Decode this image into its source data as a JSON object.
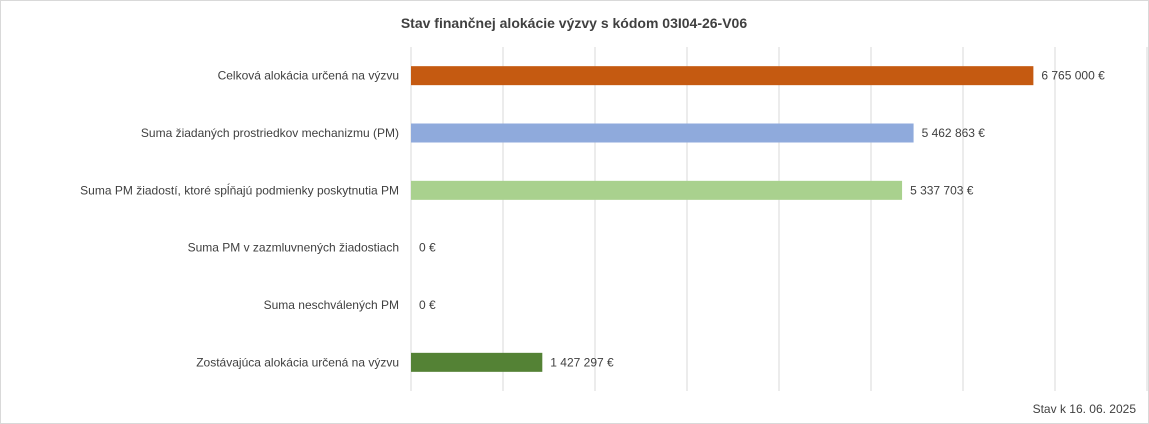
{
  "chart_data": {
    "type": "bar",
    "orientation": "horizontal",
    "title": "Stav finančnej alokácie výzvy s kódom 03I04-26-V06",
    "categories": [
      "Celková alokácia určená na výzvu",
      "Suma žiadaných prostriedkov mechanizmu (PM)",
      "Suma PM žiadostí, ktoré spĺňajú podmienky poskytnutia PM",
      "Suma PM v zazmluvnených žiadostiach",
      "Suma neschválených PM",
      "Zostávajúca alokácia určená na výzvu"
    ],
    "values": [
      6765000,
      5462863,
      5337703,
      0,
      0,
      1427297
    ],
    "data_labels": [
      "6 765 000 €",
      "5 462 863 €",
      "5 337 703 €",
      "0 €",
      "0 €",
      "1 427 297 €"
    ],
    "colors": [
      "#c55a11",
      "#8faadc",
      "#a9d18e",
      "#4472c4",
      "#7f7f7f",
      "#548235"
    ],
    "xlim": [
      0,
      8000000
    ],
    "gridlines": true,
    "legend": "none",
    "footnote": "Stav k 16. 06. 2025"
  }
}
